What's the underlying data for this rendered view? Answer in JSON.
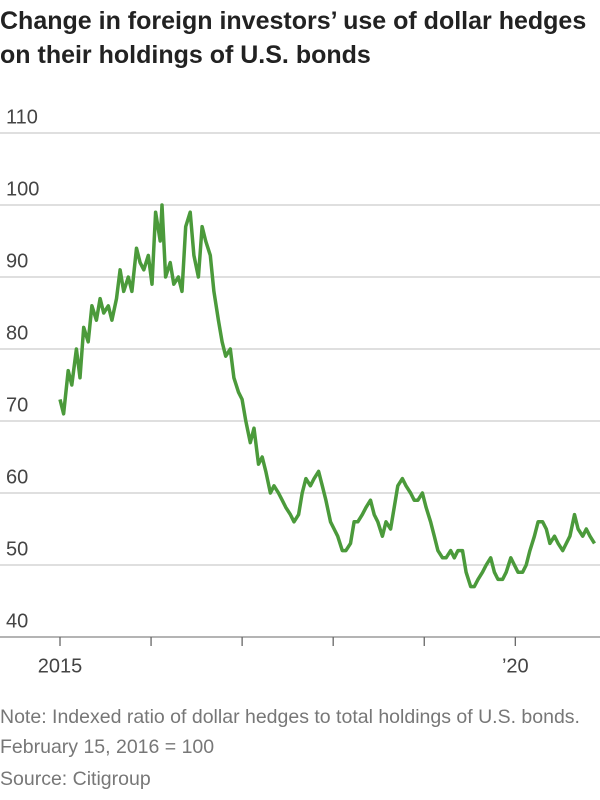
{
  "chart_data": {
    "type": "line",
    "title": "Change in foreign investors’ use of dollar hedges on their holdings of U.S. bonds",
    "note": "Note: Indexed ratio of dollar hedges to total holdings of U.S. bonds. February 15, 2016 = 100",
    "source": "Source: Citigroup",
    "x": [
      2015.0,
      2015.04,
      2015.09,
      2015.13,
      2015.18,
      2015.22,
      2015.26,
      2015.31,
      2015.35,
      2015.4,
      2015.44,
      2015.48,
      2015.53,
      2015.57,
      2015.62,
      2015.66,
      2015.7,
      2015.75,
      2015.79,
      2015.84,
      2015.88,
      2015.92,
      2015.97,
      2016.01,
      2016.05,
      2016.1,
      2016.12,
      2016.16,
      2016.21,
      2016.25,
      2016.3,
      2016.34,
      2016.38,
      2016.43,
      2016.47,
      2016.52,
      2016.56,
      2016.6,
      2016.65,
      2016.69,
      2016.74,
      2016.78,
      2016.82,
      2016.87,
      2016.91,
      2016.96,
      2017.0,
      2017.04,
      2017.09,
      2017.13,
      2017.18,
      2017.22,
      2017.26,
      2017.31,
      2017.35,
      2017.4,
      2017.44,
      2017.48,
      2017.53,
      2017.57,
      2017.62,
      2017.66,
      2017.7,
      2017.75,
      2017.79,
      2017.84,
      2017.88,
      2017.92,
      2017.97,
      2018.01,
      2018.05,
      2018.1,
      2018.14,
      2018.19,
      2018.23,
      2018.27,
      2018.32,
      2018.36,
      2018.41,
      2018.45,
      2018.49,
      2018.54,
      2018.58,
      2018.63,
      2018.67,
      2018.71,
      2018.76,
      2018.8,
      2018.85,
      2018.89,
      2018.93,
      2018.98,
      2019.02,
      2019.07,
      2019.11,
      2019.15,
      2019.2,
      2019.24,
      2019.29,
      2019.33,
      2019.37,
      2019.42,
      2019.46,
      2019.51,
      2019.55,
      2019.59,
      2019.64,
      2019.68,
      2019.73,
      2019.77,
      2019.81,
      2019.86,
      2019.9,
      2019.95,
      2019.99,
      2020.03,
      2020.08,
      2020.12,
      2020.16,
      2020.21,
      2020.25,
      2020.3,
      2020.34,
      2020.38,
      2020.43,
      2020.47,
      2020.52,
      2020.56,
      2020.6,
      2020.65,
      2020.69,
      2020.74,
      2020.78,
      2020.82,
      2020.87
    ],
    "series": [
      {
        "color": "#4b9a3b",
        "values": [
          73,
          71,
          77,
          75,
          80,
          76,
          83,
          81,
          86,
          84,
          87,
          85,
          86,
          84,
          87,
          91,
          88,
          90,
          88,
          94,
          92,
          91,
          93,
          89,
          99,
          95,
          100,
          90,
          92,
          89,
          90,
          88,
          97,
          99,
          93,
          90,
          97,
          95,
          93,
          88,
          84,
          81,
          79,
          80,
          76,
          74,
          73,
          70,
          67,
          69,
          64,
          65,
          63,
          60,
          61,
          60,
          59,
          58,
          57,
          56,
          57,
          60,
          62,
          61,
          62,
          63,
          61,
          59,
          56,
          55,
          54,
          52,
          52,
          53,
          56,
          56,
          57,
          58,
          59,
          57,
          56,
          54,
          56,
          55,
          58,
          61,
          62,
          61,
          60,
          59,
          59,
          60,
          58,
          56,
          54,
          52,
          51,
          51,
          52,
          51,
          52,
          52,
          49,
          47,
          47,
          48,
          49,
          50,
          51,
          49,
          48,
          48,
          49,
          51,
          50,
          49,
          49,
          50,
          52,
          54,
          56,
          56,
          55,
          53,
          54,
          53,
          52,
          53,
          54,
          57,
          55,
          54,
          55,
          54,
          53
        ]
      }
    ],
    "xlim": [
      2015,
      2020.93
    ],
    "xticks": [
      2015,
      2016,
      2017,
      2018,
      2019,
      2020
    ],
    "xticklabels": [
      2015,
      {
        "value": 2020,
        "label": "’20"
      }
    ],
    "ylim": [
      40,
      110
    ],
    "yticks": [
      40,
      50,
      60,
      70,
      80,
      90,
      100,
      110
    ],
    "grid": true
  }
}
